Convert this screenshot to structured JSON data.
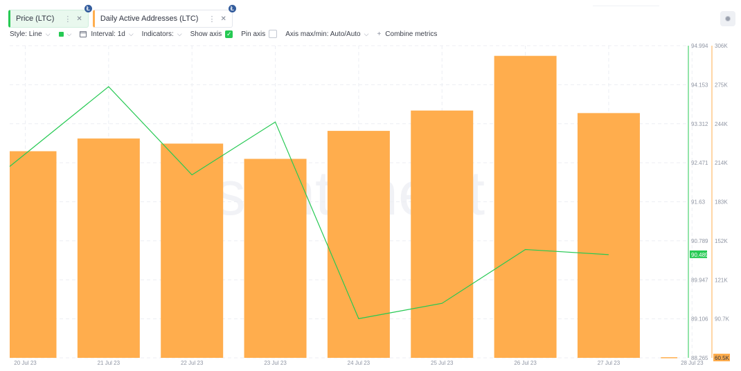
{
  "tabs": [
    {
      "label": "Price (LTC)",
      "badge": "Ł"
    },
    {
      "label": "Daily Active Addresses (LTC)",
      "badge": "Ł"
    }
  ],
  "toolbar": {
    "style_label": "Style: Line",
    "interval_label": "Interval: 1d",
    "indicators_label": "Indicators:",
    "show_axis_label": "Show axis",
    "show_axis_checked": true,
    "pin_axis_label": "Pin axis",
    "pin_axis_checked": false,
    "axis_minmax_label": "Axis max/min: Auto/Auto",
    "combine_label": "Combine metrics",
    "price_color": "#26c953"
  },
  "watermark": "santiment",
  "chart_data": {
    "type": "bar+line",
    "x": [
      "20 Jul 23",
      "21 Jul 23",
      "22 Jul 23",
      "23 Jul 23",
      "24 Jul 23",
      "25 Jul 23",
      "26 Jul 23",
      "27 Jul 23",
      "28 Jul 23"
    ],
    "series": [
      {
        "name": "Price (LTC)",
        "type": "line",
        "axis": "left",
        "color": "#26c953",
        "values": [
          92.39,
          94.11,
          92.21,
          93.35,
          89.11,
          89.44,
          90.6,
          90.49,
          null
        ]
      },
      {
        "name": "Daily Active Addresses (LTC)",
        "type": "bar",
        "axis": "right",
        "color": "#ffad4d",
        "values": [
          223000,
          233000,
          229000,
          217000,
          239000,
          255000,
          298000,
          253000,
          61000
        ]
      }
    ],
    "price_axis": {
      "ticks": [
        "94.994",
        "94.153",
        "93.312",
        "92.471",
        "91.63",
        "90.789",
        "89.947",
        "89.106",
        "88.265"
      ],
      "min": 88.265,
      "max": 94.994,
      "current_label": "90.489",
      "color": "#26c953"
    },
    "daa_axis": {
      "ticks": [
        "306K",
        "275K",
        "244K",
        "214K",
        "183K",
        "152K",
        "121K",
        "90.7K"
      ],
      "min": 60500,
      "max": 306000,
      "current_label": "60.5K",
      "color": "#ffad4d"
    },
    "grid": true
  }
}
